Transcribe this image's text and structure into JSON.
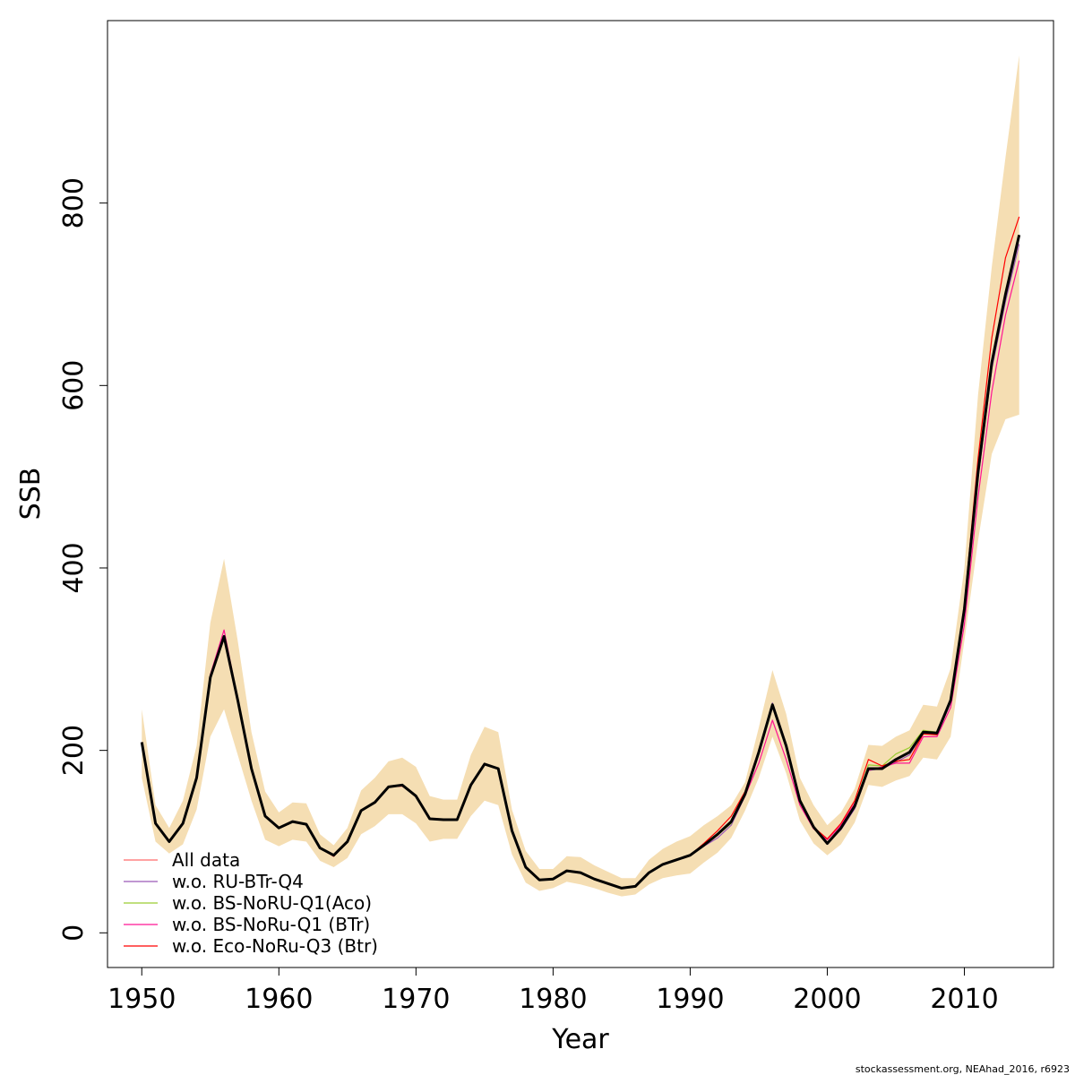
{
  "chart_data": {
    "type": "line",
    "xlabel": "Year",
    "ylabel": "SSB",
    "xlim": [
      1947.5,
      2016.5
    ],
    "ylim": [
      -38,
      1000
    ],
    "x_ticks": [
      1950,
      1960,
      1970,
      1980,
      1990,
      2000,
      2010
    ],
    "y_ticks": [
      0,
      200,
      400,
      600,
      800
    ],
    "grid": false,
    "legend_position": "bottom-left",
    "band_color": "#f5deb3",
    "x": [
      1950,
      1951,
      1952,
      1953,
      1954,
      1955,
      1956,
      1957,
      1958,
      1959,
      1960,
      1961,
      1962,
      1963,
      1964,
      1965,
      1966,
      1967,
      1968,
      1969,
      1970,
      1971,
      1972,
      1973,
      1974,
      1975,
      1976,
      1977,
      1978,
      1979,
      1980,
      1981,
      1982,
      1983,
      1984,
      1985,
      1986,
      1987,
      1988,
      1989,
      1990,
      1991,
      1992,
      1993,
      1994,
      1995,
      1996,
      1997,
      1998,
      1999,
      2000,
      2001,
      2002,
      2003,
      2004,
      2005,
      2006,
      2007,
      2008,
      2009,
      2010,
      2011,
      2012,
      2013,
      2014
    ],
    "ci_upper": [
      245,
      140,
      115,
      145,
      205,
      340,
      410,
      320,
      220,
      155,
      132,
      143,
      142,
      108,
      96,
      115,
      156,
      170,
      188,
      192,
      182,
      150,
      146,
      146,
      195,
      226,
      220,
      135,
      90,
      70,
      70,
      84,
      83,
      74,
      67,
      60,
      60,
      80,
      92,
      100,
      106,
      118,
      128,
      140,
      165,
      225,
      288,
      240,
      170,
      140,
      118,
      132,
      158,
      206,
      205,
      215,
      222,
      250,
      248,
      290,
      400,
      590,
      730,
      850,
      962
    ],
    "ci_lower": [
      170,
      100,
      87,
      97,
      135,
      215,
      245,
      195,
      145,
      102,
      95,
      102,
      100,
      79,
      72,
      82,
      108,
      117,
      130,
      130,
      120,
      100,
      103,
      103,
      128,
      145,
      140,
      86,
      55,
      46,
      49,
      56,
      53,
      49,
      44,
      40,
      42,
      53,
      60,
      63,
      65,
      77,
      88,
      104,
      134,
      170,
      215,
      175,
      123,
      98,
      85,
      97,
      121,
      162,
      160,
      167,
      172,
      192,
      190,
      215,
      320,
      430,
      525,
      563,
      568
    ],
    "series": [
      {
        "name": "All data",
        "color": "#000000",
        "width": 3,
        "values": [
          209,
          120,
          100,
          120,
          170,
          280,
          325,
          255,
          180,
          128,
          115,
          122,
          119,
          93,
          85,
          100,
          134,
          143,
          160,
          162,
          150,
          125,
          124,
          124,
          162,
          185,
          180,
          112,
          72,
          58,
          59,
          68,
          66,
          59,
          54,
          49,
          51,
          66,
          75,
          80,
          85,
          96,
          108,
          122,
          152,
          198,
          250,
          205,
          145,
          116,
          98,
          115,
          139,
          180,
          180,
          190,
          198,
          220,
          219,
          255,
          355,
          505,
          625,
          700,
          765
        ],
        "draw_lower": false
      },
      {
        "name": "w.o. RU-BTr-Q4",
        "color": "#9b59b6",
        "width": 1.2,
        "values": [
          209,
          121,
          100,
          121,
          170,
          280,
          325,
          254,
          179,
          128,
          115,
          122,
          119,
          93,
          84,
          100,
          134,
          143,
          160,
          161,
          150,
          125,
          124,
          124,
          162,
          185,
          180,
          112,
          72,
          58,
          59,
          68,
          66,
          59,
          54,
          49,
          51,
          66,
          75,
          80,
          85,
          95,
          104,
          118,
          150,
          200,
          252,
          207,
          146,
          117,
          98,
          113,
          136,
          178,
          180,
          187,
          195,
          219,
          217,
          252,
          350,
          498,
          618,
          692,
          755
        ]
      },
      {
        "name": "w.o. BS-NoRU-Q1(Aco)",
        "color": "#9acd32",
        "width": 1.2,
        "values": [
          209,
          121,
          100,
          121,
          170,
          280,
          325,
          254,
          179,
          128,
          115,
          122,
          119,
          93,
          84,
          100,
          134,
          143,
          160,
          161,
          150,
          125,
          124,
          124,
          162,
          185,
          180,
          112,
          72,
          58,
          59,
          68,
          66,
          59,
          54,
          49,
          51,
          66,
          75,
          80,
          85,
          96,
          107,
          120,
          152,
          200,
          250,
          206,
          147,
          117,
          99,
          116,
          141,
          184,
          183,
          196,
          203,
          222,
          220,
          254,
          352,
          502,
          622,
          700,
          765
        ]
      },
      {
        "name": "w.o. BS-NoRu-Q1 (BTr)",
        "color": "#ff1493",
        "width": 1.2,
        "values": [
          209,
          121,
          100,
          121,
          170,
          283,
          332,
          256,
          179,
          128,
          115,
          122,
          119,
          93,
          84,
          100,
          134,
          143,
          160,
          161,
          150,
          125,
          124,
          124,
          162,
          185,
          180,
          112,
          72,
          58,
          59,
          68,
          66,
          59,
          54,
          49,
          51,
          66,
          75,
          80,
          85,
          97,
          108,
          122,
          150,
          186,
          233,
          190,
          140,
          114,
          102,
          118,
          142,
          178,
          182,
          186,
          186,
          215,
          215,
          247,
          338,
          478,
          593,
          677,
          737
        ]
      },
      {
        "name": "w.o. Eco-NoRu-Q3 (Btr)",
        "color": "#ff0000",
        "width": 1.2,
        "values": [
          209,
          121,
          100,
          121,
          170,
          280,
          325,
          254,
          179,
          128,
          115,
          122,
          119,
          93,
          84,
          100,
          134,
          143,
          160,
          161,
          150,
          125,
          124,
          124,
          162,
          185,
          180,
          112,
          72,
          58,
          59,
          68,
          66,
          59,
          54,
          49,
          51,
          66,
          75,
          80,
          85,
          98,
          112,
          128,
          155,
          200,
          250,
          205,
          146,
          116,
          103,
          120,
          145,
          190,
          183,
          188,
          190,
          218,
          217,
          255,
          360,
          520,
          652,
          740,
          785
        ]
      }
    ]
  },
  "footer": "stockassessment.org, NEAhad_2016, r6923"
}
